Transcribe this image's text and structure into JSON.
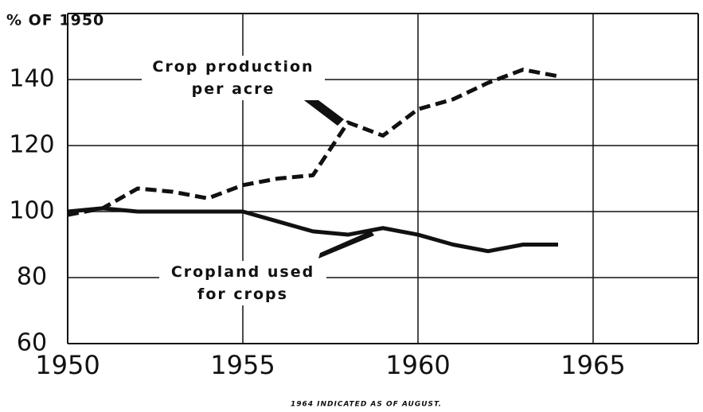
{
  "chart_data": {
    "type": "line",
    "y_axis_label": "% OF 1950",
    "note": "1964 INDICATED AS OF AUGUST.",
    "x": [
      1950,
      1951,
      1952,
      1953,
      1954,
      1955,
      1956,
      1957,
      1958,
      1959,
      1960,
      1961,
      1962,
      1963,
      1964
    ],
    "series": [
      {
        "name": "Crop production per acre",
        "color": "#111111",
        "dash": true,
        "values": [
          99,
          101,
          107,
          106,
          104,
          108,
          110,
          111,
          127,
          123,
          131,
          134,
          139,
          143,
          141
        ]
      },
      {
        "name": "Cropland used for crops",
        "color": "#111111",
        "dash": false,
        "values": [
          100,
          101,
          100,
          100,
          100,
          100,
          97,
          94,
          93,
          95,
          93,
          90,
          88,
          90,
          90
        ]
      }
    ],
    "xlim": [
      1950,
      1968
    ],
    "xticks": [
      1950,
      1955,
      1960,
      1965
    ],
    "ylim": [
      60,
      160
    ],
    "yticks": [
      60,
      80,
      100,
      120,
      140
    ],
    "grid": true
  }
}
